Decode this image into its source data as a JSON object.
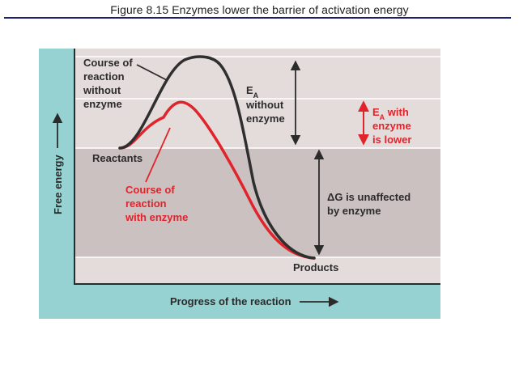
{
  "title": "Figure 8.15 Enzymes lower the barrier of activation energy",
  "figure": {
    "y_axis_label": "Free energy",
    "x_axis_label": "Progress of the reaction",
    "labels": {
      "course_without": [
        "Course of",
        "reaction",
        "without",
        "enzyme"
      ],
      "ea_without": [
        "E",
        "A",
        "without",
        "enzyme"
      ],
      "ea_with": [
        "E",
        "A",
        " with",
        "enzyme",
        "is lower"
      ],
      "reactants": "Reactants",
      "course_with": [
        "Course of",
        "reaction",
        "with enzyme"
      ],
      "delta_g": [
        "ΔG is unaffected",
        "by enzyme"
      ],
      "products": "Products"
    },
    "colors": {
      "background": "#96d2d1",
      "plot_light": "#e4dcdb",
      "plot_dark": "#cbc1c0",
      "uncatalyzed_curve": "#2f2f2f",
      "catalyzed_curve": "#e1232b",
      "arrow_dark": "#2b2b2b",
      "arrow_red": "#e1232b"
    }
  }
}
